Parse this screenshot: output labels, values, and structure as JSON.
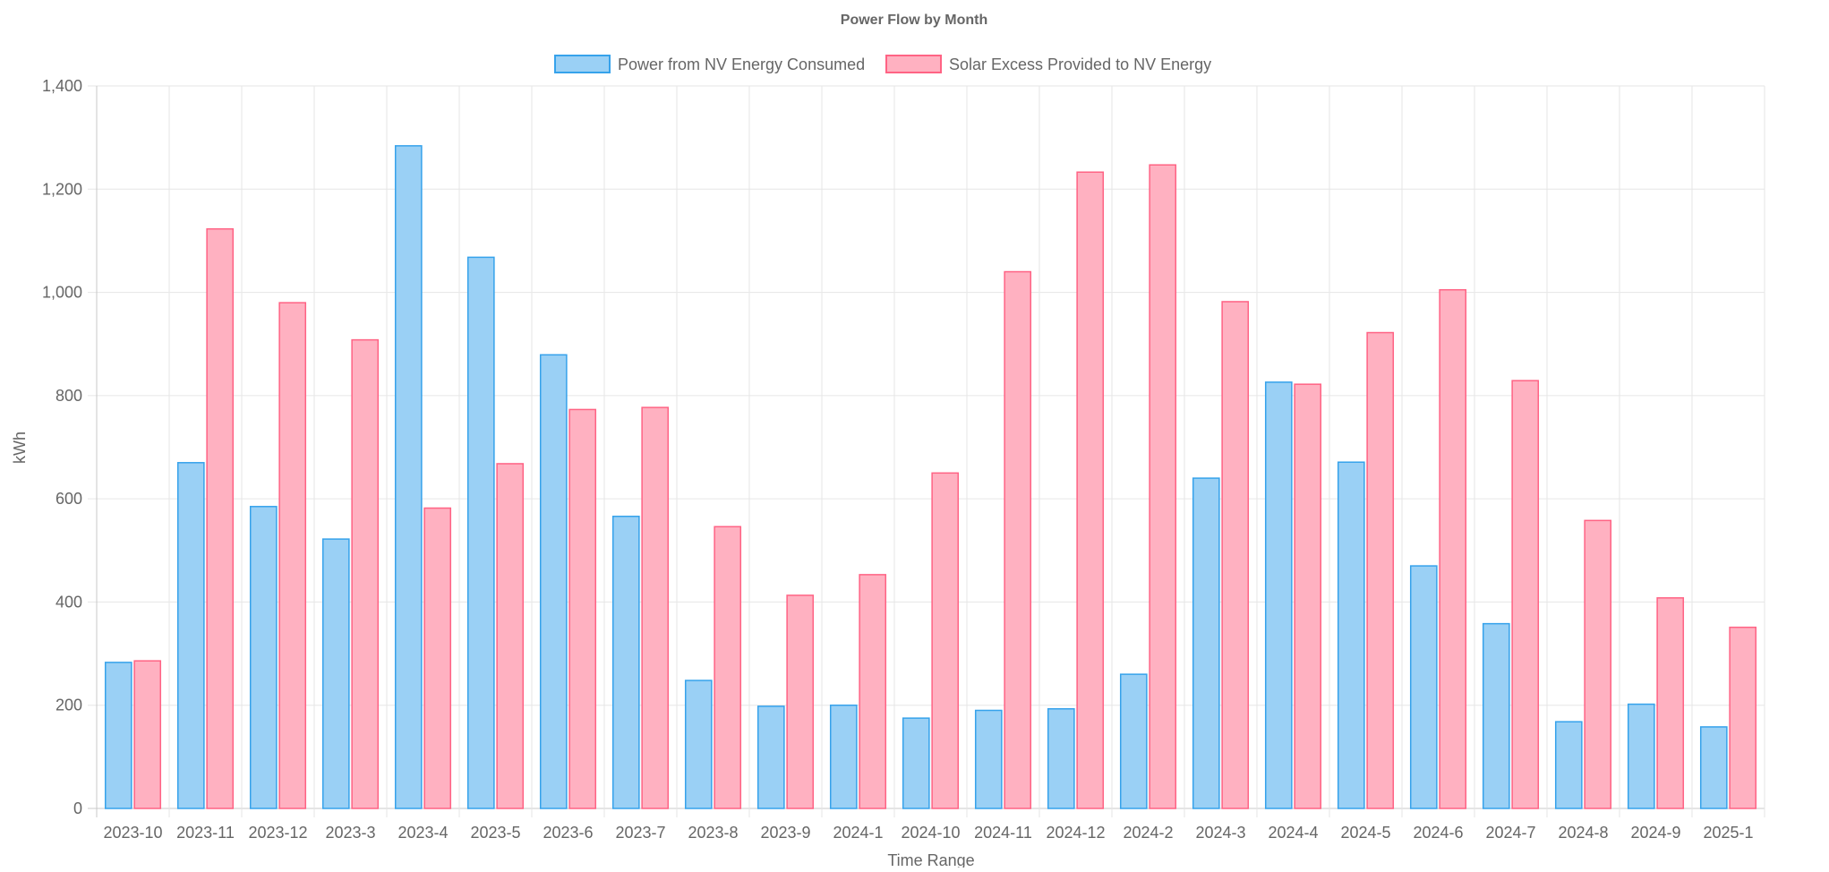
{
  "chart_data": {
    "type": "bar",
    "title": "Power Flow by Month",
    "xlabel": "Time Range",
    "ylabel": "kWh",
    "ylim": [
      0,
      1400
    ],
    "yticks": [
      0,
      200,
      400,
      600,
      800,
      1000,
      1200,
      1400
    ],
    "ytick_labels": [
      "0",
      "200",
      "400",
      "600",
      "800",
      "1,000",
      "1,200",
      "1,400"
    ],
    "grid": true,
    "legend_position": "top",
    "categories": [
      "2023-10",
      "2023-11",
      "2023-12",
      "2023-3",
      "2023-4",
      "2023-5",
      "2023-6",
      "2023-7",
      "2023-8",
      "2023-9",
      "2024-1",
      "2024-10",
      "2024-11",
      "2024-12",
      "2024-2",
      "2024-3",
      "2024-4",
      "2024-5",
      "2024-6",
      "2024-7",
      "2024-8",
      "2024-9",
      "2025-1"
    ],
    "series": [
      {
        "name": "Power from NV Energy Consumed",
        "color": "#36a2eb",
        "fill": "#9ad0f5",
        "values": [
          283,
          670,
          585,
          522,
          1284,
          1068,
          879,
          566,
          248,
          198,
          200,
          175,
          190,
          193,
          260,
          640,
          826,
          671,
          470,
          358,
          168,
          202,
          158
        ]
      },
      {
        "name": "Solar Excess Provided to NV Energy",
        "color": "#ff6384",
        "fill": "#ffb1c1",
        "values": [
          286,
          1123,
          980,
          908,
          582,
          668,
          773,
          777,
          546,
          413,
          453,
          650,
          1040,
          1233,
          1247,
          982,
          822,
          922,
          1005,
          829,
          558,
          408,
          351
        ]
      }
    ]
  }
}
